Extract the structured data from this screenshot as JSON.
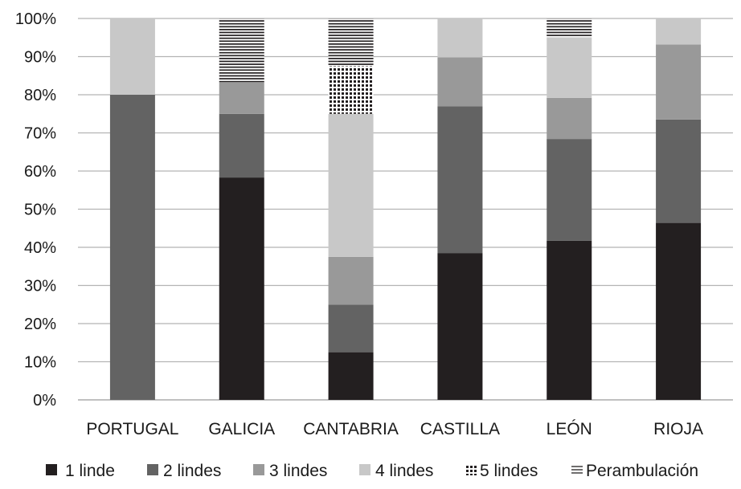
{
  "chart_data": {
    "type": "bar",
    "stacked": true,
    "title": "",
    "xlabel": "",
    "ylabel": "",
    "ylim": [
      0,
      100
    ],
    "y_ticks": [
      "0%",
      "10%",
      "20%",
      "30%",
      "40%",
      "50%",
      "60%",
      "70%",
      "80%",
      "90%",
      "100%"
    ],
    "grid": "horizontal",
    "legend_position": "bottom",
    "categories": [
      "PORTUGAL",
      "GALICIA",
      "CANTABRIA",
      "CASTILLA",
      "LEÓN",
      "RIOJA"
    ],
    "series": [
      {
        "name": "1 linde",
        "color": "#231f20",
        "pattern": "solid",
        "values": [
          0,
          58.3,
          12.5,
          38.5,
          41.7,
          46.4
        ]
      },
      {
        "name": "2 lindes",
        "color": "#636363",
        "pattern": "solid",
        "values": [
          80,
          16.7,
          12.5,
          38.5,
          26.7,
          27.1
        ]
      },
      {
        "name": "3 lindes",
        "color": "#999999",
        "pattern": "solid",
        "values": [
          0,
          8.3,
          12.5,
          12.8,
          10.8,
          19.7
        ]
      },
      {
        "name": "4 lindes",
        "color": "#c8c8c8",
        "pattern": "solid",
        "values": [
          20,
          0,
          37.5,
          10.2,
          15.8,
          6.8
        ]
      },
      {
        "name": "5 lindes",
        "color": "#231f20",
        "pattern": "checker",
        "values": [
          0,
          0,
          12.5,
          0,
          0,
          0
        ]
      },
      {
        "name": "Perambulación",
        "color": "#231f20",
        "pattern": "hlines",
        "values": [
          0,
          16.7,
          12.5,
          0,
          5.0,
          0
        ]
      }
    ]
  }
}
